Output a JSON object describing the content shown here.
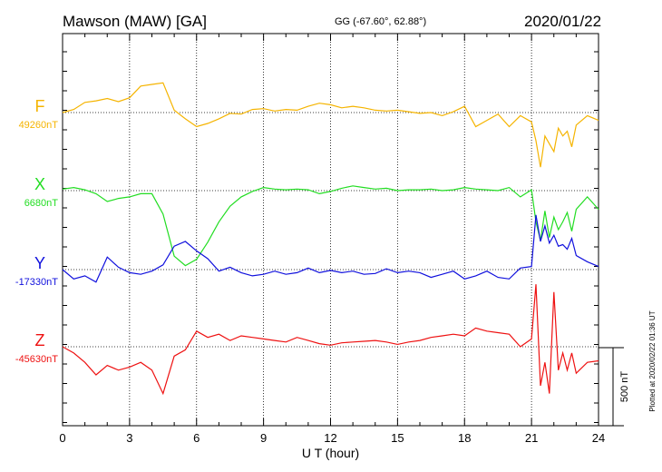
{
  "header": {
    "station": "Mawson (MAW)  [GA]",
    "coords": "GG (-67.60°,  62.88°)",
    "date": "2020/01/22"
  },
  "footer_note": "Plotted at 2020/02/22 01:36 UT",
  "colors": {
    "F": "#f5b400",
    "X": "#22dd22",
    "Y": "#1010dd",
    "Z": "#ee1111"
  },
  "chart_data": {
    "type": "line",
    "title": "Mawson (MAW)  [GA]",
    "xlabel": "U T (hour)",
    "ylabel": "",
    "xlim": [
      0,
      24
    ],
    "x_ticks": [
      "0",
      "3",
      "6",
      "9",
      "12",
      "15",
      "18",
      "21",
      "24"
    ],
    "grid": true,
    "scale_bar": {
      "label": "500 nT",
      "value_nT": 500
    },
    "x": [
      0,
      0.5,
      1,
      1.5,
      2,
      2.5,
      3,
      3.5,
      4,
      4.5,
      5,
      5.5,
      6,
      6.5,
      7,
      7.5,
      8,
      8.5,
      9,
      9.5,
      10,
      10.5,
      11,
      11.5,
      12,
      12.5,
      13,
      13.5,
      14,
      14.5,
      15,
      15.5,
      16,
      16.5,
      17,
      17.5,
      18,
      18.5,
      19,
      19.5,
      20,
      20.5,
      21,
      21.2,
      21.4,
      21.6,
      21.8,
      22,
      22.2,
      22.4,
      22.6,
      22.8,
      23,
      23.5,
      24
    ],
    "series": [
      {
        "name": "F",
        "baseline_label": "49260nT",
        "values": [
          0,
          20,
          65,
          75,
          90,
          70,
          95,
          170,
          180,
          190,
          15,
          -40,
          -90,
          -70,
          -40,
          -5,
          -10,
          20,
          25,
          10,
          20,
          15,
          40,
          60,
          50,
          30,
          40,
          30,
          15,
          10,
          15,
          5,
          -5,
          0,
          -20,
          5,
          40,
          -90,
          -50,
          -10,
          -90,
          -20,
          -60,
          -180,
          -350,
          -150,
          -200,
          -250,
          -100,
          -150,
          -120,
          -220,
          -80,
          -20,
          -50
        ]
      },
      {
        "name": "X",
        "baseline_label": "6680nT",
        "values": [
          10,
          20,
          5,
          -20,
          -70,
          -50,
          -40,
          -20,
          -20,
          -150,
          -420,
          -480,
          -440,
          -330,
          -200,
          -100,
          -40,
          -5,
          20,
          10,
          5,
          10,
          5,
          -20,
          -5,
          15,
          30,
          20,
          10,
          15,
          0,
          5,
          5,
          10,
          0,
          5,
          20,
          10,
          5,
          0,
          20,
          -40,
          5,
          -200,
          -320,
          -130,
          -300,
          -170,
          -250,
          -200,
          -140,
          -260,
          -120,
          -40,
          -120
        ]
      },
      {
        "name": "Y",
        "baseline_label": "-17330nT",
        "values": [
          0,
          -60,
          -40,
          -80,
          80,
          15,
          -20,
          -30,
          -10,
          30,
          150,
          180,
          120,
          70,
          -10,
          15,
          -20,
          -40,
          -30,
          -10,
          -30,
          -20,
          10,
          -20,
          -5,
          -20,
          -10,
          -30,
          -25,
          5,
          -20,
          -10,
          -20,
          -50,
          -30,
          -10,
          -60,
          -40,
          -10,
          -50,
          -60,
          10,
          20,
          350,
          180,
          280,
          170,
          220,
          150,
          160,
          130,
          200,
          90,
          50,
          20
        ]
      },
      {
        "name": "Z",
        "baseline_label": "-45630nT",
        "values": [
          0,
          -40,
          -100,
          -180,
          -120,
          -150,
          -130,
          -100,
          -150,
          -300,
          -60,
          -20,
          100,
          60,
          80,
          40,
          70,
          60,
          50,
          40,
          30,
          60,
          40,
          20,
          10,
          25,
          30,
          35,
          40,
          30,
          15,
          30,
          40,
          60,
          70,
          80,
          70,
          120,
          100,
          90,
          80,
          0,
          50,
          400,
          -250,
          -100,
          -300,
          350,
          -150,
          -40,
          -150,
          -40,
          -170,
          -100,
          -90
        ]
      }
    ]
  }
}
